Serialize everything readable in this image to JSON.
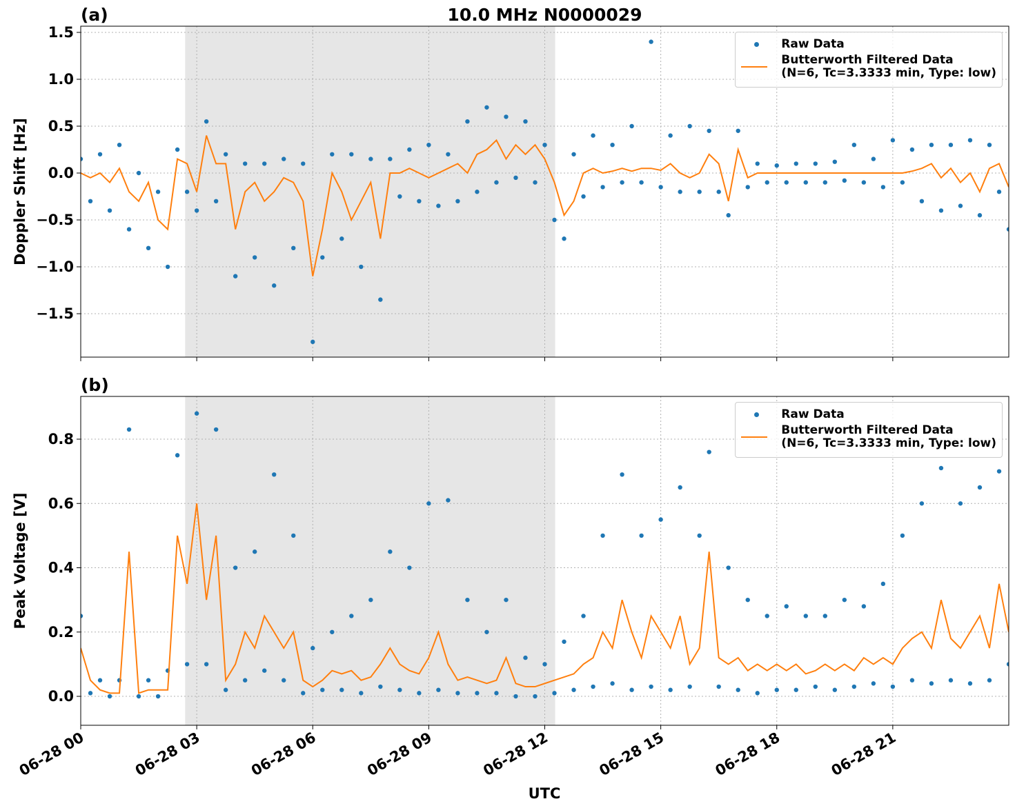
{
  "chart_data": [
    {
      "type": "scatter_line",
      "title": "10.0 MHz N0000029",
      "panel_label": "(a)",
      "ylabel": "Doppler Shift [Hz]",
      "x": [
        0,
        0.25,
        0.5,
        0.75,
        1,
        1.25,
        1.5,
        1.75,
        2,
        2.25,
        2.5,
        2.75,
        3,
        3.25,
        3.5,
        3.75,
        4,
        4.25,
        4.5,
        4.75,
        5,
        5.25,
        5.5,
        5.75,
        6,
        6.25,
        6.5,
        6.75,
        7,
        7.25,
        7.5,
        7.75,
        8,
        8.25,
        8.5,
        8.75,
        9,
        9.25,
        9.5,
        9.75,
        10,
        10.25,
        10.5,
        10.75,
        11,
        11.25,
        11.5,
        11.75,
        12,
        12.25,
        12.5,
        12.75,
        13,
        13.25,
        13.5,
        13.75,
        14,
        14.25,
        14.5,
        14.75,
        15,
        15.25,
        15.5,
        15.75,
        16,
        16.25,
        16.5,
        16.75,
        17,
        17.25,
        17.5,
        17.75,
        18,
        18.25,
        18.5,
        18.75,
        19,
        19.25,
        19.5,
        19.75,
        20,
        20.25,
        20.5,
        20.75,
        21,
        21.25,
        21.5,
        21.75,
        22,
        22.25,
        22.5,
        22.75,
        23,
        23.25,
        23.5,
        23.75,
        24
      ],
      "series": [
        {
          "name": "Raw Data",
          "color": "#1f77b4",
          "style": "dots",
          "values": [
            0.15,
            -0.3,
            0.2,
            -0.4,
            0.3,
            -0.6,
            0.0,
            -0.8,
            -0.2,
            -1.0,
            0.25,
            -0.2,
            -0.4,
            0.55,
            -0.3,
            0.2,
            -1.1,
            0.1,
            -0.9,
            0.1,
            -1.2,
            0.15,
            -0.8,
            0.1,
            -1.8,
            -0.9,
            0.2,
            -0.7,
            0.2,
            -1.0,
            0.15,
            -1.35,
            0.15,
            -0.25,
            0.25,
            -0.3,
            0.3,
            -0.35,
            0.2,
            -0.3,
            0.55,
            -0.2,
            0.7,
            -0.1,
            0.6,
            -0.05,
            0.55,
            -0.1,
            0.3,
            -0.5,
            -0.7,
            0.2,
            -0.25,
            0.4,
            -0.15,
            0.3,
            -0.1,
            0.5,
            -0.1,
            1.4,
            -0.15,
            0.4,
            -0.2,
            0.5,
            -0.2,
            0.45,
            -0.2,
            -0.45,
            0.45,
            -0.15,
            0.1,
            -0.1,
            0.08,
            -0.1,
            0.1,
            -0.1,
            0.1,
            -0.1,
            0.12,
            -0.08,
            0.3,
            -0.1,
            0.15,
            -0.15,
            0.35,
            -0.1,
            0.25,
            -0.3,
            0.3,
            -0.4,
            0.3,
            -0.35,
            0.35,
            -0.45,
            0.3,
            -0.2,
            -0.6
          ]
        },
        {
          "name": "Butterworth Filtered Data\n(N=6, Tc=3.3333 min, Type: low)",
          "color": "#ff7f0e",
          "style": "line",
          "values": [
            0,
            -0.05,
            0,
            -0.1,
            0.05,
            -0.2,
            -0.3,
            -0.1,
            -0.5,
            -0.6,
            0.15,
            0.1,
            -0.2,
            0.4,
            0.1,
            0.1,
            -0.6,
            -0.2,
            -0.1,
            -0.3,
            -0.2,
            -0.05,
            -0.1,
            -0.3,
            -1.1,
            -0.6,
            0,
            -0.2,
            -0.5,
            -0.3,
            -0.1,
            -0.7,
            0,
            0,
            0.05,
            0,
            -0.05,
            0,
            0.05,
            0.1,
            0,
            0.2,
            0.25,
            0.35,
            0.15,
            0.3,
            0.2,
            0.3,
            0.15,
            -0.1,
            -0.45,
            -0.3,
            0,
            0.05,
            0,
            0.02,
            0.05,
            0.02,
            0.05,
            0.05,
            0.03,
            0.1,
            0,
            -0.05,
            0,
            0.2,
            0.1,
            -0.3,
            0.25,
            -0.05,
            0,
            0,
            0,
            0,
            0,
            0,
            0,
            0,
            0,
            0,
            0,
            0,
            0,
            0,
            0,
            0,
            0.02,
            0.05,
            0.1,
            -0.05,
            0.05,
            -0.1,
            0,
            -0.2,
            0.05,
            0.1,
            -0.15
          ]
        }
      ],
      "xlim": [
        0,
        24
      ],
      "xticks": [
        0,
        3,
        6,
        9,
        12,
        15,
        18,
        21
      ],
      "xticklabels_shown": false,
      "ylim": [
        -1.963,
        1.566
      ],
      "yticks": [
        {
          "value": -1.5,
          "label": "−1.5"
        },
        {
          "value": -1,
          "label": "−1.0"
        },
        {
          "value": -0.5,
          "label": "−0.5"
        },
        {
          "value": 0,
          "label": "0.0"
        },
        0.5,
        {
          "value": 1,
          "label": "1.0"
        },
        1.5
      ],
      "shaded_span": [
        2.7,
        12.27
      ],
      "shade_color": "#e6e6e6",
      "grid": true,
      "legend": "upper right"
    },
    {
      "type": "scatter_line",
      "panel_label": "(b)",
      "ylabel": "Peak Voltage [V]",
      "xlabel": "UTC",
      "x": [
        0,
        0.25,
        0.5,
        0.75,
        1,
        1.25,
        1.5,
        1.75,
        2,
        2.25,
        2.5,
        2.75,
        3,
        3.25,
        3.5,
        3.75,
        4,
        4.25,
        4.5,
        4.75,
        5,
        5.25,
        5.5,
        5.75,
        6,
        6.25,
        6.5,
        6.75,
        7,
        7.25,
        7.5,
        7.75,
        8,
        8.25,
        8.5,
        8.75,
        9,
        9.25,
        9.5,
        9.75,
        10,
        10.25,
        10.5,
        10.75,
        11,
        11.25,
        11.5,
        11.75,
        12,
        12.25,
        12.5,
        12.75,
        13,
        13.25,
        13.5,
        13.75,
        14,
        14.25,
        14.5,
        14.75,
        15,
        15.25,
        15.5,
        15.75,
        16,
        16.25,
        16.5,
        16.75,
        17,
        17.25,
        17.5,
        17.75,
        18,
        18.25,
        18.5,
        18.75,
        19,
        19.25,
        19.5,
        19.75,
        20,
        20.25,
        20.5,
        20.75,
        21,
        21.25,
        21.5,
        21.75,
        22,
        22.25,
        22.5,
        22.75,
        23,
        23.25,
        23.5,
        23.75,
        24
      ],
      "series": [
        {
          "name": "Raw Data",
          "color": "#1f77b4",
          "style": "dots",
          "values": [
            0.25,
            0.01,
            0.05,
            0,
            0.05,
            0.83,
            0,
            0.05,
            0,
            0.08,
            0.75,
            0.1,
            0.88,
            0.1,
            0.83,
            0.02,
            0.4,
            0.05,
            0.45,
            0.08,
            0.69,
            0.05,
            0.5,
            0.01,
            0.15,
            0.02,
            0.2,
            0.02,
            0.25,
            0.01,
            0.3,
            0.03,
            0.45,
            0.02,
            0.4,
            0.01,
            0.6,
            0.02,
            0.61,
            0.01,
            0.3,
            0.01,
            0.2,
            0.01,
            0.3,
            0,
            0.12,
            0,
            0.1,
            0.01,
            0.17,
            0.02,
            0.25,
            0.03,
            0.5,
            0.04,
            0.69,
            0.02,
            0.5,
            0.03,
            0.55,
            0.02,
            0.65,
            0.03,
            0.5,
            0.76,
            0.03,
            0.4,
            0.02,
            0.3,
            0.01,
            0.25,
            0.02,
            0.28,
            0.02,
            0.25,
            0.03,
            0.25,
            0.02,
            0.3,
            0.03,
            0.28,
            0.04,
            0.35,
            0.03,
            0.5,
            0.05,
            0.6,
            0.04,
            0.71,
            0.05,
            0.6,
            0.04,
            0.65,
            0.05,
            0.7,
            0.1
          ]
        },
        {
          "name": "Butterworth Filtered Data\n(N=6, Tc=3.3333 min, Type: low)",
          "color": "#ff7f0e",
          "style": "line",
          "values": [
            0.15,
            0.05,
            0.02,
            0.01,
            0.01,
            0.45,
            0.01,
            0.02,
            0.02,
            0.02,
            0.5,
            0.35,
            0.6,
            0.3,
            0.5,
            0.05,
            0.1,
            0.2,
            0.15,
            0.25,
            0.2,
            0.15,
            0.2,
            0.05,
            0.03,
            0.05,
            0.08,
            0.07,
            0.08,
            0.05,
            0.06,
            0.1,
            0.15,
            0.1,
            0.08,
            0.07,
            0.12,
            0.2,
            0.1,
            0.05,
            0.06,
            0.05,
            0.04,
            0.05,
            0.12,
            0.04,
            0.03,
            0.03,
            0.04,
            0.05,
            0.06,
            0.07,
            0.1,
            0.12,
            0.2,
            0.15,
            0.3,
            0.2,
            0.12,
            0.25,
            0.2,
            0.15,
            0.25,
            0.1,
            0.15,
            0.45,
            0.12,
            0.1,
            0.12,
            0.08,
            0.1,
            0.08,
            0.1,
            0.08,
            0.1,
            0.07,
            0.08,
            0.1,
            0.08,
            0.1,
            0.08,
            0.12,
            0.1,
            0.12,
            0.1,
            0.15,
            0.18,
            0.2,
            0.15,
            0.3,
            0.18,
            0.15,
            0.2,
            0.25,
            0.15,
            0.35,
            0.2
          ]
        }
      ],
      "xlim": [
        0,
        24
      ],
      "xticks": [
        {
          "value": 0,
          "label": "06-28 00"
        },
        {
          "value": 3,
          "label": "06-28 03"
        },
        {
          "value": 6,
          "label": "06-28 06"
        },
        {
          "value": 9,
          "label": "06-28 09"
        },
        {
          "value": 12,
          "label": "06-28 12"
        },
        {
          "value": 15,
          "label": "06-28 15"
        },
        {
          "value": 18,
          "label": "06-28 18"
        },
        {
          "value": 21,
          "label": "06-28 21"
        }
      ],
      "xticklabels_shown": true,
      "ylim": [
        -0.09,
        0.933
      ],
      "yticks": [
        {
          "value": 0,
          "label": "0.0"
        },
        0.2,
        0.4,
        0.6,
        0.8
      ],
      "shaded_span": [
        2.7,
        12.27
      ],
      "shade_color": "#e6e6e6",
      "grid": true,
      "legend": "upper right"
    }
  ]
}
